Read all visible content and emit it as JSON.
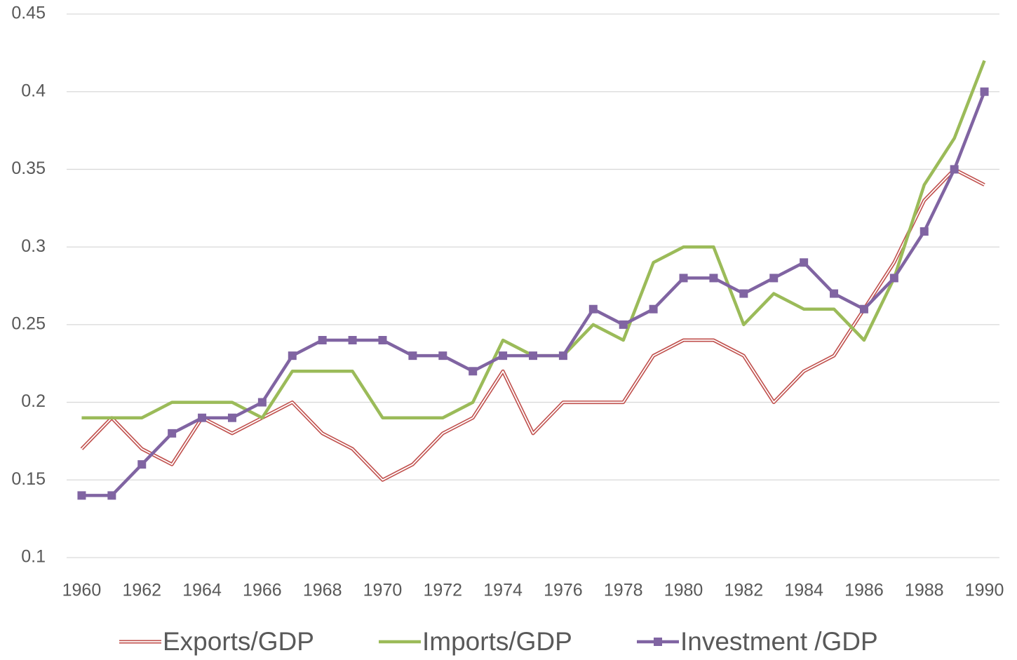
{
  "chart_data": {
    "type": "line",
    "x": [
      1960,
      1961,
      1962,
      1963,
      1964,
      1965,
      1966,
      1967,
      1968,
      1969,
      1970,
      1971,
      1972,
      1973,
      1974,
      1975,
      1976,
      1977,
      1978,
      1979,
      1980,
      1981,
      1982,
      1983,
      1984,
      1985,
      1986,
      1987,
      1988,
      1989,
      1990
    ],
    "xlim": [
      1959.5,
      1990.5
    ],
    "xticks": [
      1960,
      1962,
      1964,
      1966,
      1968,
      1970,
      1972,
      1974,
      1976,
      1978,
      1980,
      1982,
      1984,
      1986,
      1988,
      1990
    ],
    "ylim": [
      0.1,
      0.45
    ],
    "yticks": [
      0.1,
      0.15,
      0.2,
      0.25,
      0.3,
      0.35,
      0.4,
      0.45
    ],
    "grid": true,
    "legend": "bottom",
    "series": [
      {
        "name": "Exports/GDP",
        "color": "#c0504d",
        "style": "double",
        "values": [
          0.17,
          0.19,
          0.17,
          0.16,
          0.19,
          0.18,
          0.19,
          0.2,
          0.18,
          0.17,
          0.15,
          0.16,
          0.18,
          0.19,
          0.22,
          0.18,
          0.2,
          0.2,
          0.2,
          0.23,
          0.24,
          0.24,
          0.23,
          0.2,
          0.22,
          0.23,
          0.26,
          0.29,
          0.33,
          0.35,
          0.34
        ]
      },
      {
        "name": "Imports/GDP",
        "color": "#9bbb59",
        "style": "solid",
        "values": [
          0.19,
          0.19,
          0.19,
          0.2,
          0.2,
          0.2,
          0.19,
          0.22,
          0.22,
          0.22,
          0.19,
          0.19,
          0.19,
          0.2,
          0.24,
          0.23,
          0.23,
          0.25,
          0.24,
          0.29,
          0.3,
          0.3,
          0.25,
          0.27,
          0.26,
          0.26,
          0.24,
          0.28,
          0.34,
          0.37,
          0.42
        ]
      },
      {
        "name": "Investment /GDP",
        "color": "#8064a2",
        "style": "solid",
        "marker": "square",
        "values": [
          0.14,
          0.14,
          0.16,
          0.18,
          0.19,
          0.19,
          0.2,
          0.23,
          0.24,
          0.24,
          0.24,
          0.23,
          0.23,
          0.22,
          0.23,
          0.23,
          0.23,
          0.26,
          0.25,
          0.26,
          0.28,
          0.28,
          0.27,
          0.28,
          0.29,
          0.27,
          0.26,
          0.28,
          0.31,
          0.35,
          0.4
        ]
      }
    ]
  }
}
